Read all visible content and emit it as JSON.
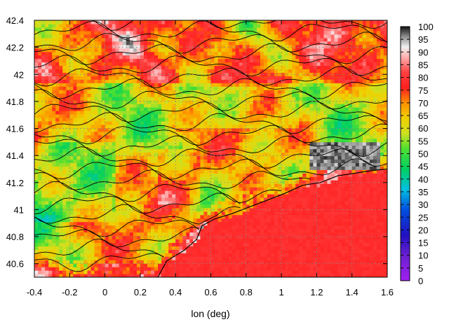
{
  "chart_data": {
    "type": "heatmap",
    "title": "",
    "xlabel": "lon (deg)",
    "ylabel": "",
    "xlim": [
      -0.4,
      1.6
    ],
    "ylim": [
      40.5,
      42.4
    ],
    "x_ticks": [
      "-0.4",
      "-0.2",
      "0",
      "0.2",
      "0.4",
      "0.6",
      "0.8",
      "1",
      "1.2",
      "1.4",
      "1.6"
    ],
    "y_ticks": [
      "40.6",
      "40.8",
      "41",
      "41.2",
      "41.4",
      "41.6",
      "41.8",
      "42",
      "42.2",
      "42.4"
    ],
    "colorbar": {
      "min": 0,
      "max": 100,
      "ticks": [
        "0",
        "5",
        "10",
        "15",
        "20",
        "25",
        "30",
        "35",
        "40",
        "45",
        "50",
        "55",
        "60",
        "65",
        "70",
        "75",
        "80",
        "85",
        "90",
        "95",
        "100"
      ]
    },
    "grid": true,
    "contour_lines": true,
    "coastline": [
      [
        0.3,
        40.5
      ],
      [
        0.35,
        40.62
      ],
      [
        0.45,
        40.7
      ],
      [
        0.52,
        40.78
      ],
      [
        0.55,
        40.88
      ],
      [
        0.62,
        40.93
      ],
      [
        0.72,
        40.97
      ],
      [
        0.82,
        41.02
      ],
      [
        0.92,
        41.07
      ],
      [
        1.02,
        41.12
      ],
      [
        1.12,
        41.18
      ],
      [
        1.22,
        41.2
      ],
      [
        1.32,
        41.25
      ],
      [
        1.42,
        41.27
      ],
      [
        1.52,
        41.29
      ],
      [
        1.6,
        41.3
      ]
    ],
    "colors": {
      "sea": "#ff2020",
      "urban": "#505050",
      "low": "#a020f0",
      "high": "#101010"
    }
  }
}
